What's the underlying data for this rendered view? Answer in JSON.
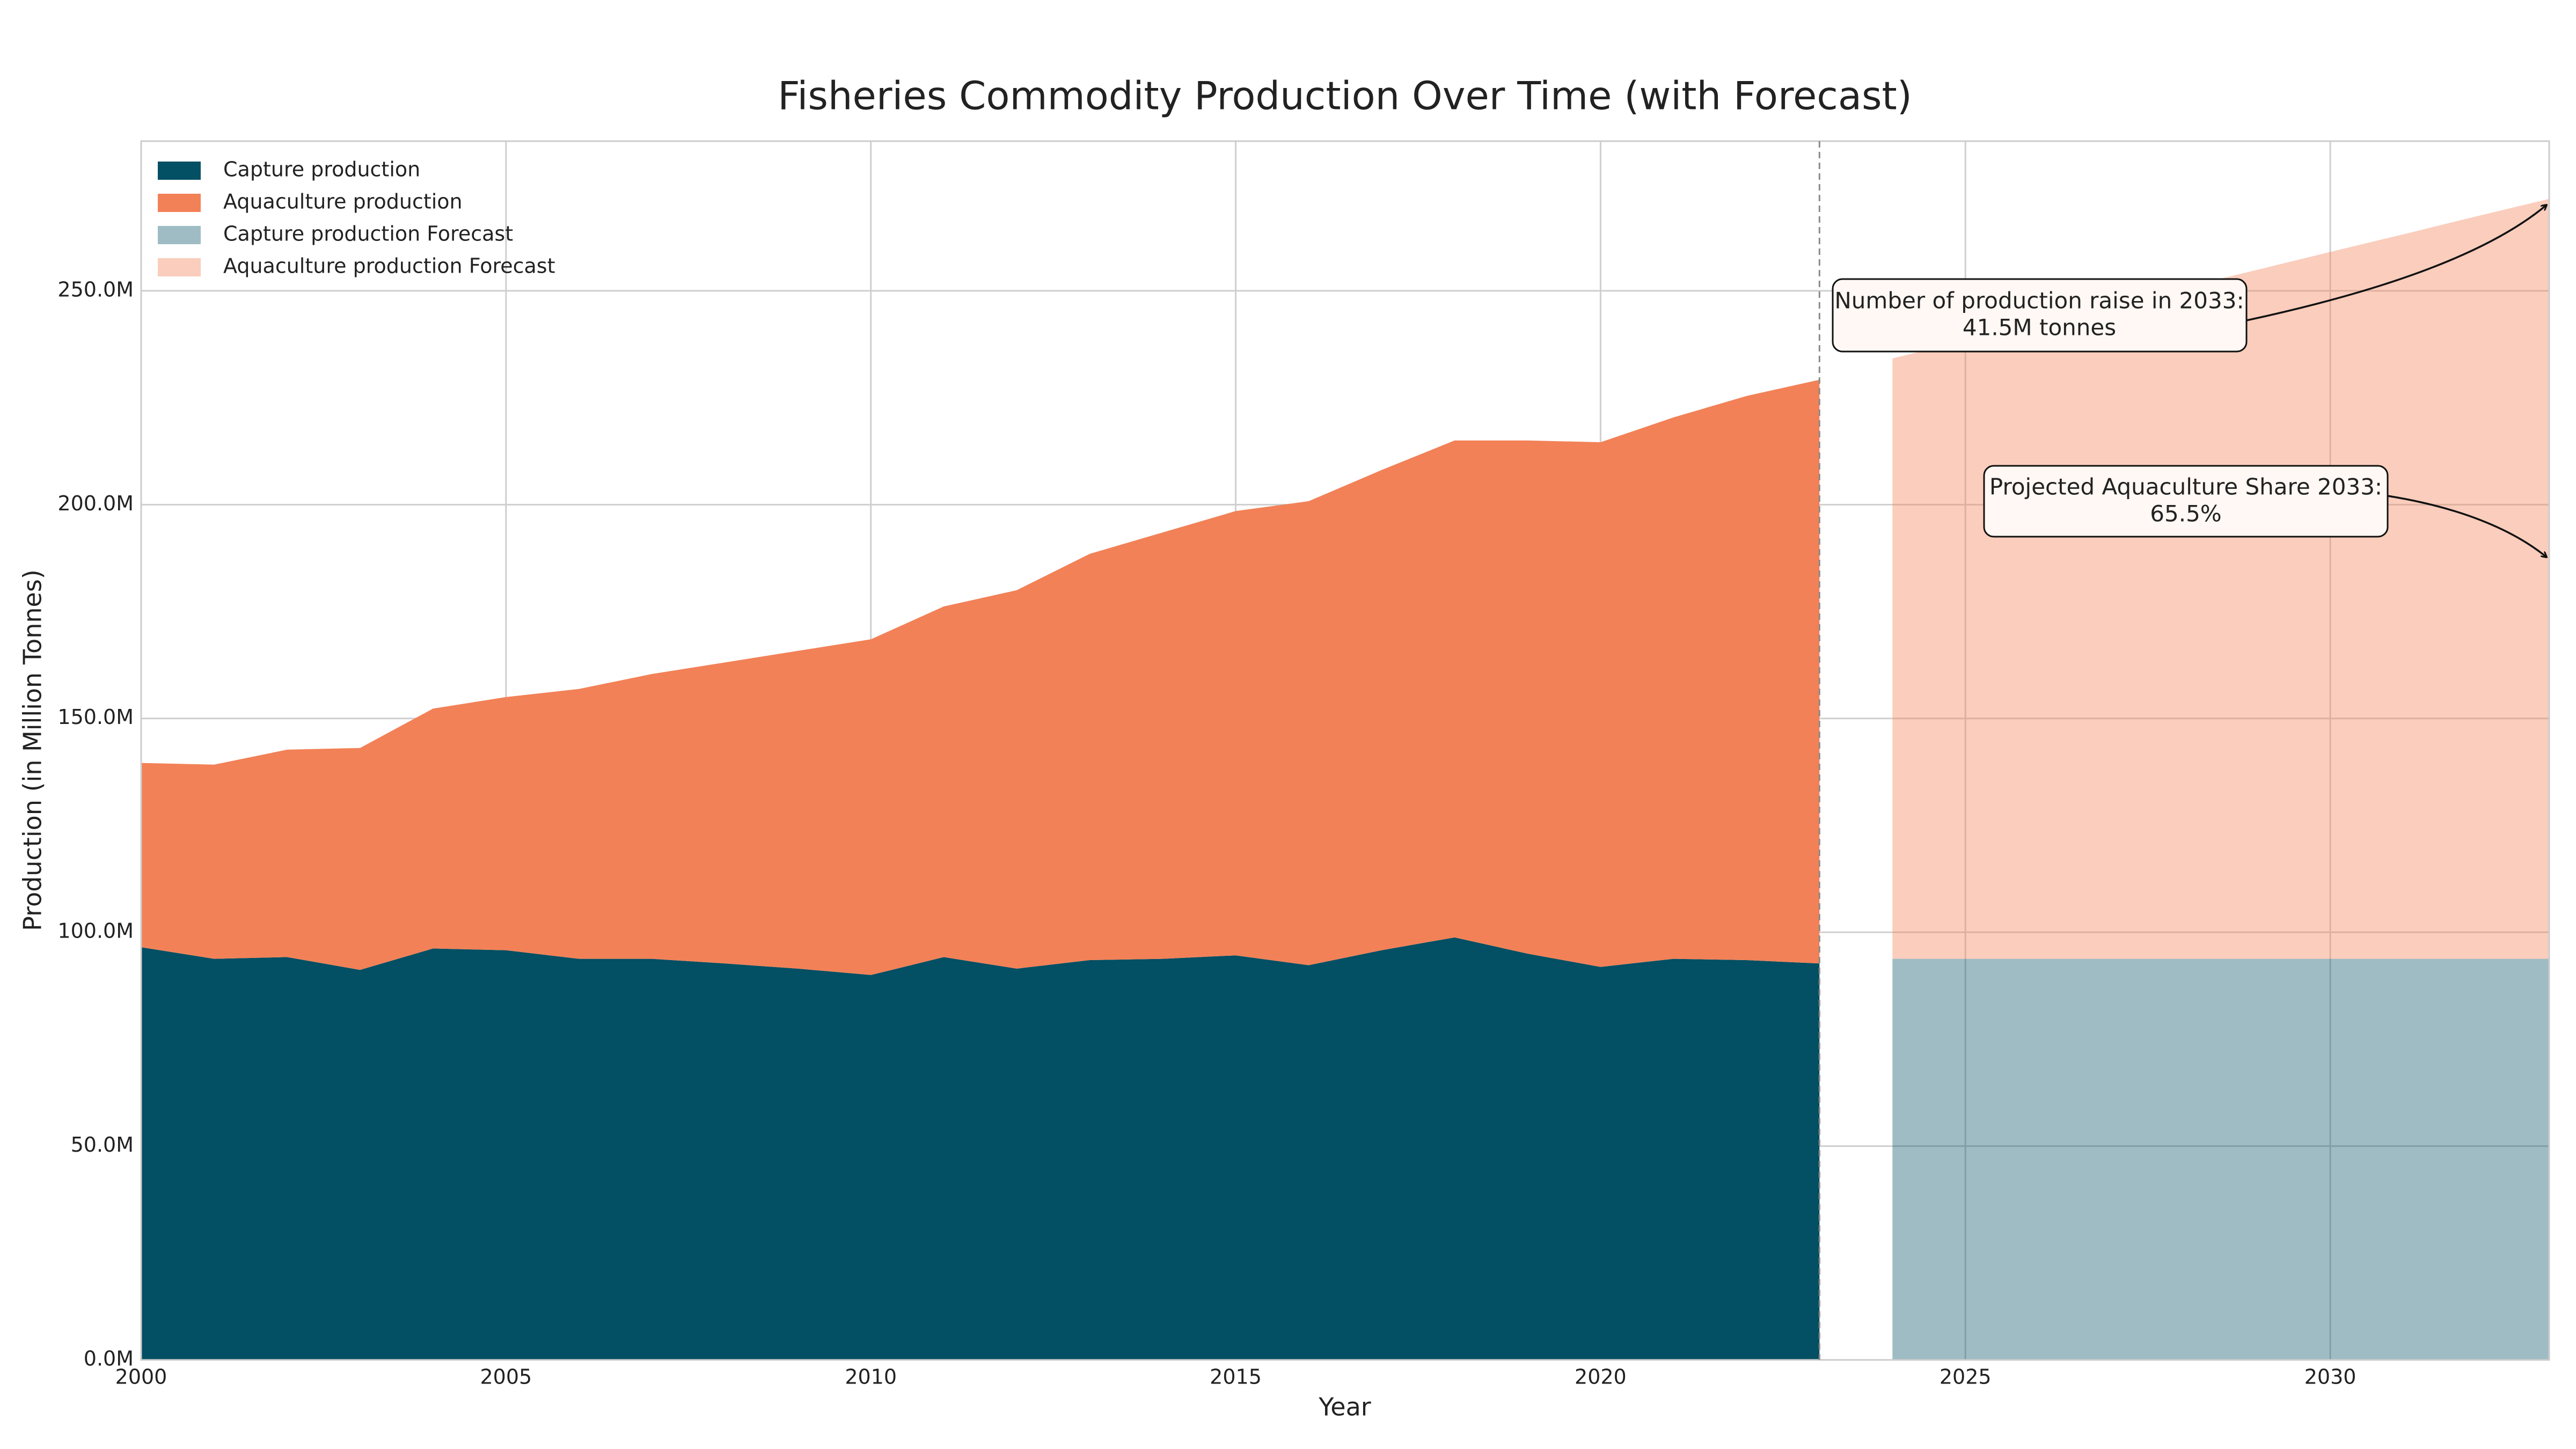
{
  "chart_data": {
    "type": "area",
    "stacked": true,
    "title": "Fisheries Commodity Production Over Time (with Forecast)",
    "x_label": "Year",
    "y_label": "Production (in Million Tonnes)",
    "x": [
      2000,
      2001,
      2002,
      2003,
      2004,
      2005,
      2006,
      2007,
      2008,
      2009,
      2010,
      2011,
      2012,
      2013,
      2014,
      2015,
      2016,
      2017,
      2018,
      2019,
      2020,
      2021,
      2022,
      2023,
      2024,
      2025,
      2026,
      2027,
      2028,
      2029,
      2030,
      2031,
      2032,
      2033
    ],
    "series": [
      {
        "name": "Capture production",
        "color": "#034f63",
        "alpha": 1,
        "values": [
          96.5,
          93.8,
          94.2,
          91.2,
          96.2,
          95.8,
          93.8,
          93.8,
          92.7,
          91.5,
          90.0,
          94.2,
          91.5,
          93.5,
          93.8,
          94.6,
          92.3,
          95.8,
          98.8,
          95.0,
          91.9,
          93.8,
          93.5,
          92.7,
          null,
          null,
          null,
          null,
          null,
          null,
          null,
          null,
          null,
          null
        ]
      },
      {
        "name": "Aquaculture production",
        "color": "#f28157",
        "alpha": 1,
        "values": [
          43.1,
          45.4,
          48.5,
          51.9,
          56.1,
          59.2,
          63.1,
          66.6,
          70.4,
          74.3,
          78.5,
          82.0,
          88.5,
          95.0,
          99.7,
          103.9,
          108.5,
          112.3,
          116.2,
          120.0,
          122.7,
          126.6,
          131.9,
          136.5,
          null,
          null,
          null,
          null,
          null,
          null,
          null,
          null,
          null,
          null
        ]
      },
      {
        "name": "Capture production Forecast",
        "color": "#034f63",
        "alpha": 0.38,
        "values": [
          null,
          null,
          null,
          null,
          null,
          null,
          null,
          null,
          null,
          null,
          null,
          null,
          null,
          null,
          null,
          null,
          null,
          null,
          null,
          null,
          null,
          null,
          null,
          null,
          93.8,
          93.8,
          93.8,
          93.8,
          93.8,
          93.8,
          93.8,
          93.8,
          93.8,
          93.8
        ]
      },
      {
        "name": "Aquaculture production Forecast",
        "color": "#f28157",
        "alpha": 0.4,
        "values": [
          null,
          null,
          null,
          null,
          null,
          null,
          null,
          null,
          null,
          null,
          null,
          null,
          null,
          null,
          null,
          null,
          null,
          null,
          null,
          null,
          null,
          null,
          null,
          null,
          140.4,
          144.5,
          148.7,
          152.8,
          157.0,
          161.1,
          165.3,
          169.4,
          173.6,
          177.7
        ]
      }
    ],
    "forecast_start": 2023,
    "xlim": [
      2000,
      2033
    ],
    "xticks": [
      2000,
      2005,
      2010,
      2015,
      2020,
      2025,
      2030
    ],
    "ylim": [
      0,
      285
    ],
    "yticks": [
      {
        "value": 0,
        "label": "0.0M"
      },
      {
        "value": 50,
        "label": "50.0M"
      },
      {
        "value": 100,
        "label": "100.0M"
      },
      {
        "value": 150,
        "label": "150.0M"
      },
      {
        "value": 200,
        "label": "200.0M"
      },
      {
        "value": 250,
        "label": "250.0M"
      }
    ],
    "grid": true,
    "legend": "upper left",
    "annotations": [
      {
        "lines": [
          "Number of production raise in 2033:",
          "41.5M tonnes"
        ]
      },
      {
        "lines": [
          "Projected Aquaculture Share 2033:",
          "65.5%"
        ]
      }
    ]
  }
}
